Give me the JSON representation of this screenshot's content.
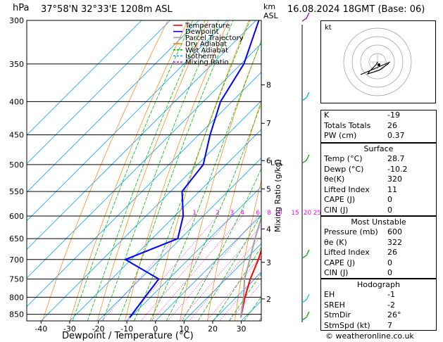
{
  "header": {
    "location": "37°58'N  32°33'E  1208m  ASL",
    "datetime": "16.08.2024  18GMT  (Base: 06)",
    "p_unit": "hPa",
    "km_unit": "km",
    "asl_unit": "ASL",
    "footer": "© weatheronline.co.uk"
  },
  "chart_data": {
    "type": "line",
    "title": "",
    "xlabel": "Dewpoint / Temperature (°C)",
    "ylabel": "hPa",
    "right_label": "Mixing Ratio (g/kg)",
    "xlim": [
      -45,
      37
    ],
    "pressure_range": [
      300,
      870
    ],
    "pressure_ticks": [
      300,
      350,
      400,
      450,
      500,
      550,
      600,
      650,
      700,
      750,
      800,
      850
    ],
    "temp_ticks": [
      -40,
      -30,
      -20,
      -10,
      0,
      10,
      20,
      30
    ],
    "km_ticks": [
      {
        "km": "2",
        "p": 805
      },
      {
        "km": "3",
        "p": 707
      },
      {
        "km": "4",
        "p": 628
      },
      {
        "km": "5",
        "p": 545
      },
      {
        "km": "6",
        "p": 493
      },
      {
        "km": "7",
        "p": 432
      },
      {
        "km": "8",
        "p": 377
      }
    ],
    "lcl_label": "LCL",
    "lcl_p": 497,
    "mixing_ratio_labels": [
      "1",
      "2",
      "3",
      "4",
      "6",
      "8",
      "10",
      "15",
      "20",
      "25"
    ],
    "mixing_ratio_values": [
      1,
      2,
      3,
      4,
      6,
      8,
      10,
      15,
      20,
      25
    ],
    "series": [
      {
        "name": "Temperature",
        "color": "#ff0000",
        "p": [
          860,
          800,
          750,
          700,
          650,
          600,
          550,
          500,
          450,
          400,
          350
        ],
        "t": [
          28.7,
          23,
          18.5,
          14.5,
          9.5,
          4.5,
          -1,
          -6.5,
          -13,
          -20,
          -29
        ]
      },
      {
        "name": "Dewpoint",
        "color": "#0000ff",
        "p": [
          860,
          800,
          750,
          700,
          650,
          600,
          550,
          500,
          450,
          400,
          350,
          300
        ],
        "t": [
          -10.2,
          -12,
          -13.5,
          -32,
          -21,
          -27,
          -36,
          -38,
          -46,
          -54,
          -59,
          -69
        ]
      },
      {
        "name": "Parcel Trajectory",
        "color": "#a0a0a0",
        "p": [
          860,
          800,
          750,
          700,
          650,
          600,
          550,
          500,
          450,
          400,
          350,
          300
        ],
        "t": [
          28.7,
          22.5,
          16.5,
          11.5,
          6,
          0.5,
          -5.5,
          -11,
          -18,
          -25.5,
          -34,
          -44
        ]
      }
    ],
    "legend": [
      "Temperature",
      "Dewpoint",
      "Parcel Trajectory",
      "Dry Adiabat",
      "Wet Adiabat",
      "Isotherm",
      "Mixing Ratio"
    ],
    "legend_colors": [
      "#ff0000",
      "#0000ff",
      "#a0a0a0",
      "#ff8000",
      "#00bb00",
      "#00a0ff",
      "#ff00ff"
    ],
    "legend_position": "top"
  },
  "hodograph": {
    "label": "kt",
    "rings": [
      "10",
      "20",
      "30",
      "40"
    ]
  },
  "indices": [
    {
      "k": "K",
      "v": "-19"
    },
    {
      "k": "Totals Totals",
      "v": "26"
    },
    {
      "k": "PW (cm)",
      "v": "0.37"
    }
  ],
  "surface": {
    "title": "Surface",
    "rows": [
      {
        "k": "Temp (°C)",
        "v": "28.7"
      },
      {
        "k": "Dewp (°C)",
        "v": "-10.2"
      },
      {
        "k": "θe(K)",
        "v": "320"
      },
      {
        "k": "Lifted Index",
        "v": "11"
      },
      {
        "k": "CAPE (J)",
        "v": "0"
      },
      {
        "k": "CIN (J)",
        "v": "0"
      }
    ]
  },
  "most_unstable": {
    "title": "Most Unstable",
    "rows": [
      {
        "k": "Pressure (mb)",
        "v": "600"
      },
      {
        "k": "θe (K)",
        "v": "322"
      },
      {
        "k": "Lifted Index",
        "v": "26"
      },
      {
        "k": "CAPE (J)",
        "v": "0"
      },
      {
        "k": "CIN (J)",
        "v": "0"
      }
    ]
  },
  "hodograph_table": {
    "title": "Hodograph",
    "rows": [
      {
        "k": "EH",
        "v": "-1"
      },
      {
        "k": "SREH",
        "v": "-2"
      },
      {
        "k": "StmDir",
        "v": "26°"
      },
      {
        "k": "StmSpd (kt)",
        "v": "7"
      }
    ]
  }
}
